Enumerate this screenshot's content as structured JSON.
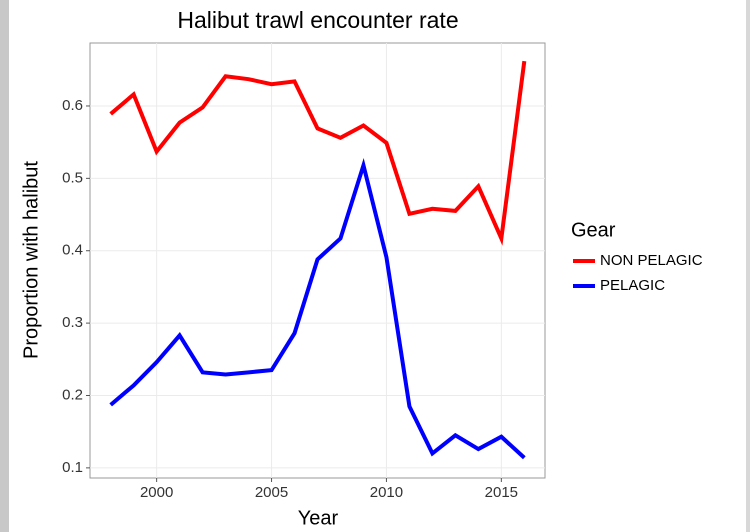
{
  "chart_data": {
    "type": "line",
    "title": "Halibut trawl encounter rate",
    "x_label": "Year",
    "y_label": "Proportion with halibut",
    "legend_title": "Gear",
    "x": [
      1998,
      1999,
      2000,
      2001,
      2002,
      2003,
      2004,
      2005,
      2006,
      2007,
      2008,
      2009,
      2010,
      2011,
      2012,
      2013,
      2014,
      2015,
      2016
    ],
    "series": [
      {
        "name": "NON PELAGIC",
        "color": "#ff0000",
        "values": [
          0.589,
          0.616,
          0.537,
          0.577,
          0.598,
          0.641,
          0.637,
          0.63,
          0.634,
          0.569,
          0.556,
          0.573,
          0.549,
          0.451,
          0.458,
          0.455,
          0.489,
          0.417,
          0.662
        ]
      },
      {
        "name": "PELAGIC",
        "color": "#0000ff",
        "values": [
          0.187,
          0.214,
          0.246,
          0.283,
          0.232,
          0.229,
          0.232,
          0.235,
          0.286,
          0.388,
          0.417,
          0.518,
          0.391,
          0.185,
          0.12,
          0.145,
          0.126,
          0.143,
          0.114
        ]
      }
    ],
    "xlim": [
      1997.1,
      2016.9
    ],
    "xticks": [
      2000,
      2005,
      2010,
      2015
    ],
    "ylim": [
      0.086,
      0.687
    ],
    "yticks": [
      0.1,
      0.2,
      0.3,
      0.4,
      0.5,
      0.6
    ],
    "grid": true,
    "legend_position": "right"
  }
}
